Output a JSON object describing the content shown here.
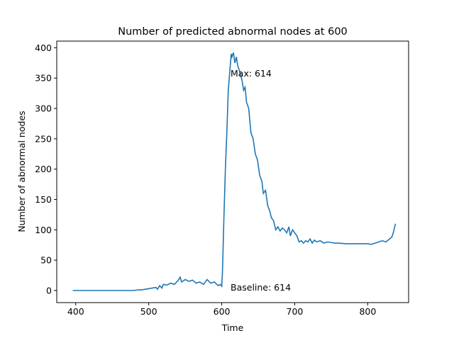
{
  "chart_data": {
    "type": "line",
    "title": "Number of predicted abnormal nodes at 600",
    "x_label": "Time",
    "y_label": "Number of abnormal nodes",
    "x": [
      396,
      400,
      410,
      420,
      430,
      440,
      450,
      460,
      470,
      475,
      480,
      485,
      490,
      495,
      500,
      505,
      510,
      512,
      515,
      518,
      520,
      525,
      530,
      535,
      540,
      543,
      545,
      550,
      555,
      560,
      565,
      570,
      575,
      580,
      585,
      590,
      595,
      598,
      600,
      601,
      603,
      605,
      607,
      609,
      611,
      613,
      614,
      616,
      618,
      620,
      622,
      625,
      628,
      630,
      632,
      634,
      637,
      640,
      643,
      646,
      649,
      652,
      655,
      657,
      660,
      663,
      666,
      668,
      671,
      674,
      677,
      680,
      683,
      686,
      689,
      692,
      694,
      697,
      700,
      703,
      706,
      709,
      712,
      715,
      718,
      721,
      724,
      727,
      730,
      735,
      740,
      745,
      750,
      755,
      760,
      770,
      780,
      790,
      800,
      805,
      810,
      815,
      820,
      825,
      830,
      833,
      835,
      838
    ],
    "values": [
      0,
      0,
      0,
      0,
      0,
      0,
      0,
      0,
      0,
      0,
      0,
      1,
      1,
      2,
      3,
      4,
      5,
      2,
      8,
      4,
      10,
      9,
      12,
      10,
      16,
      22,
      14,
      18,
      15,
      17,
      12,
      14,
      10,
      18,
      12,
      14,
      8,
      10,
      7,
      30,
      120,
      200,
      260,
      330,
      360,
      390,
      385,
      392,
      375,
      385,
      370,
      360,
      345,
      330,
      335,
      310,
      300,
      260,
      250,
      225,
      215,
      190,
      180,
      160,
      165,
      140,
      130,
      120,
      115,
      100,
      105,
      98,
      103,
      100,
      95,
      105,
      90,
      100,
      95,
      90,
      80,
      82,
      78,
      82,
      80,
      85,
      78,
      83,
      80,
      82,
      78,
      80,
      79,
      78,
      78,
      77,
      77,
      77,
      77,
      76,
      78,
      80,
      82,
      80,
      85,
      88,
      95,
      110
    ],
    "color": "#1f77b4",
    "xlim": [
      374,
      856
    ],
    "ylim": [
      -20,
      411
    ],
    "xticks": [
      400,
      500,
      600,
      700,
      800
    ],
    "yticks": [
      0,
      50,
      100,
      150,
      200,
      250,
      300,
      350,
      400
    ],
    "annotations": [
      "Max: 614",
      "Baseline: 614"
    ]
  }
}
